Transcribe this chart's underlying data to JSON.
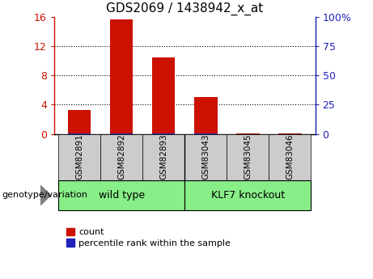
{
  "title": "GDS2069 / 1438942_x_at",
  "samples": [
    "GSM82891",
    "GSM82892",
    "GSM82893",
    "GSM83043",
    "GSM83045",
    "GSM83046"
  ],
  "count_values": [
    3.3,
    15.6,
    10.5,
    5.0,
    0.04,
    0.04
  ],
  "percentile_values": [
    0.38,
    0.55,
    0.28,
    0.32,
    0.04,
    0.04
  ],
  "left_ylim": [
    0,
    16
  ],
  "right_ylim": [
    0,
    100
  ],
  "left_yticks": [
    0,
    4,
    8,
    12,
    16
  ],
  "right_yticks": [
    0,
    25,
    50,
    75,
    100
  ],
  "left_yticklabels": [
    "0",
    "4",
    "8",
    "12",
    "16"
  ],
  "right_yticklabels": [
    "0",
    "25",
    "50",
    "75",
    "100%"
  ],
  "count_color": "#cc1100",
  "percentile_color": "#2222bb",
  "group1_label": "wild type",
  "group2_label": "KLF7 knockout",
  "group_bg_color": "#88ee88",
  "tick_bg_color": "#cccccc",
  "legend_count_label": "count",
  "legend_percentile_label": "percentile rank within the sample",
  "genotype_label": "genotype/variation",
  "bar_width": 0.55
}
